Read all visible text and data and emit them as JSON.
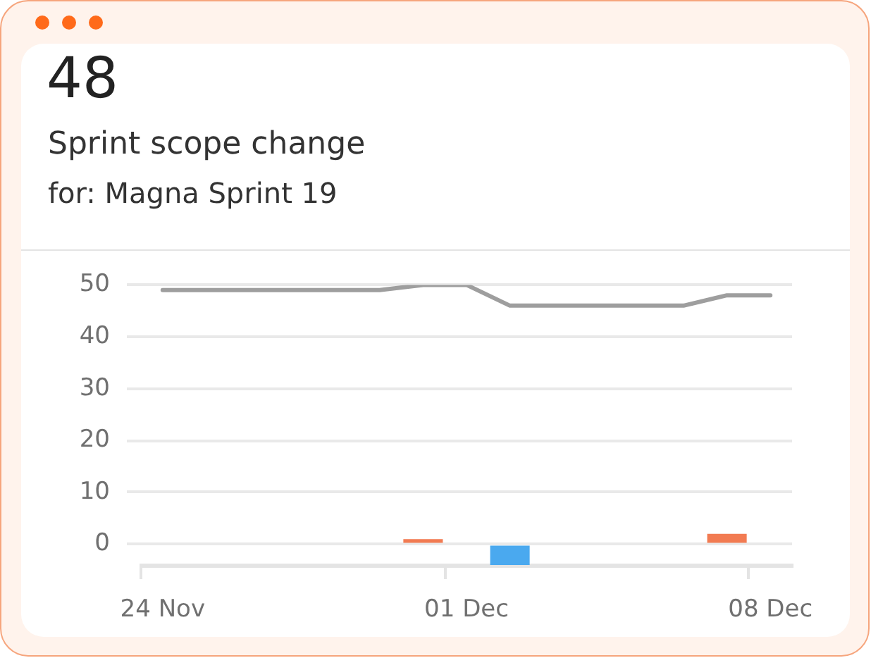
{
  "chart_data": {
    "type": "line",
    "title": "Sprint scope change",
    "subtitle": "for: Magna Sprint 19",
    "annotations": [
      "48"
    ],
    "categories": [
      "24 Nov",
      null,
      null,
      null,
      null,
      null,
      null,
      "01 Dec",
      null,
      null,
      null,
      null,
      null,
      null,
      "08 Dec"
    ],
    "series": [
      {
        "color": "#9e9e9e",
        "values": [
          49,
          49,
          49,
          49,
          49,
          49,
          50,
          50,
          46,
          46,
          46,
          46,
          46,
          48,
          48
        ]
      },
      {
        "type": "bar",
        "colors": [
          null,
          null,
          null,
          null,
          null,
          null,
          "#f27b52",
          null,
          "#4aa9ef",
          null,
          null,
          null,
          null,
          "#f27b52",
          null
        ],
        "values": [
          null,
          null,
          null,
          null,
          null,
          null,
          1,
          null,
          -4,
          null,
          null,
          null,
          null,
          2,
          null
        ]
      }
    ],
    "ylim": [
      -4,
      50
    ],
    "yticks": [
      0,
      10,
      20,
      30,
      40,
      50
    ],
    "grid": "y",
    "marker": "none",
    "legend": false
  }
}
